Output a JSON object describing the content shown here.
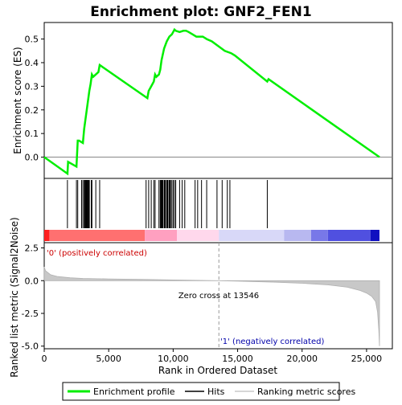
{
  "chart_data": {
    "type": "line",
    "title": "Enrichment plot: GNF2_FEN1",
    "xlabel": "Rank in Ordered Dataset",
    "xlim": [
      0,
      27000
    ],
    "x_ticks": [
      0,
      5000,
      10000,
      15000,
      20000,
      25000
    ],
    "x_tick_labels": [
      "0",
      "5,000",
      "10,000",
      "15,000",
      "20,000",
      "25,000"
    ],
    "panels": {
      "es": {
        "ylabel": "Enrichment score (ES)",
        "ylim": [
          -0.09,
          0.57
        ],
        "y_ticks": [
          0.0,
          0.1,
          0.2,
          0.3,
          0.4,
          0.5
        ],
        "y_tick_labels": [
          "0.0",
          "0.1",
          "0.2",
          "0.3",
          "0.4",
          "0.5"
        ]
      },
      "metric": {
        "ylabel": "Ranked list metric (Signal2Noise)",
        "ylim": [
          -5.2,
          2.9
        ],
        "y_ticks": [
          2.5,
          0.0,
          -2.5,
          -5.0
        ],
        "y_tick_labels": [
          "2.5",
          "0.0",
          "-2.5",
          "-5.0"
        ]
      }
    },
    "series": [
      {
        "name": "Enrichment profile",
        "color": "#00ee00",
        "x": [
          0,
          1800,
          1850,
          2500,
          2600,
          2700,
          3000,
          3100,
          3200,
          3300,
          3400,
          3500,
          3600,
          3700,
          3800,
          4000,
          4200,
          4300,
          8000,
          8100,
          8300,
          8500,
          8600,
          8700,
          8900,
          9000,
          9100,
          9300,
          9500,
          9700,
          9900,
          10000,
          10100,
          10200,
          10500,
          10800,
          11000,
          11200,
          11500,
          11800,
          12000,
          12300,
          12600,
          13000,
          13500,
          14000,
          14500,
          14800,
          17300,
          17400,
          26000
        ],
        "y": [
          0.0,
          -0.07,
          -0.02,
          -0.04,
          0.07,
          0.07,
          0.06,
          0.12,
          0.16,
          0.2,
          0.24,
          0.28,
          0.31,
          0.35,
          0.34,
          0.35,
          0.36,
          0.39,
          0.25,
          0.28,
          0.3,
          0.32,
          0.35,
          0.34,
          0.35,
          0.37,
          0.41,
          0.46,
          0.49,
          0.51,
          0.52,
          0.53,
          0.54,
          0.535,
          0.53,
          0.535,
          0.535,
          0.53,
          0.52,
          0.51,
          0.51,
          0.51,
          0.5,
          0.49,
          0.47,
          0.45,
          0.44,
          0.43,
          0.32,
          0.33,
          0.0
        ]
      },
      {
        "name": "Hits",
        "color": "#000000",
        "x": [
          1800,
          2500,
          2600,
          2900,
          3000,
          3100,
          3150,
          3200,
          3250,
          3300,
          3350,
          3400,
          3450,
          3500,
          3650,
          3700,
          4000,
          4300,
          7900,
          8100,
          8300,
          8500,
          8600,
          8900,
          9000,
          9050,
          9100,
          9150,
          9200,
          9300,
          9350,
          9400,
          9500,
          9550,
          9600,
          9700,
          9750,
          9800,
          9900,
          10000,
          10100,
          10200,
          10500,
          10700,
          10900,
          11700,
          11900,
          12200,
          12600,
          13400,
          13800,
          14200,
          14400,
          17300
        ]
      },
      {
        "name": "Ranking metric scores",
        "color": "#c8c8c8",
        "x": [
          0,
          100,
          500,
          1000,
          2000,
          3000,
          5000,
          8000,
          10000,
          12000,
          13546,
          15000,
          18000,
          20000,
          22000,
          23500,
          24500,
          25000,
          25400,
          25700,
          25850,
          25950,
          26000
        ],
        "y": [
          1.05,
          0.75,
          0.45,
          0.32,
          0.22,
          0.17,
          0.13,
          0.09,
          0.05,
          0.02,
          0.0,
          -0.04,
          -0.12,
          -0.2,
          -0.32,
          -0.5,
          -0.75,
          -0.95,
          -1.2,
          -1.6,
          -2.4,
          -3.8,
          -5.0
        ]
      }
    ],
    "annotations": {
      "positive_label": "'0' (positively correlated)",
      "negative_label": "'1' (negatively correlated)",
      "zero_cross_label": "Zero cross at 13546",
      "zero_cross": 13546
    },
    "color_bar": {
      "segments": [
        {
          "x0": 0,
          "x1": 400,
          "color": "#ff2020"
        },
        {
          "x0": 400,
          "x1": 7800,
          "color": "#ff7070"
        },
        {
          "x0": 7800,
          "x1": 10300,
          "color": "#ffa0c0"
        },
        {
          "x0": 10300,
          "x1": 13546,
          "color": "#ffd8ec"
        },
        {
          "x0": 13546,
          "x1": 18600,
          "color": "#d8d8f8"
        },
        {
          "x0": 18600,
          "x1": 20700,
          "color": "#b8b8f0"
        },
        {
          "x0": 20700,
          "x1": 22000,
          "color": "#7878e8"
        },
        {
          "x0": 22000,
          "x1": 25300,
          "color": "#5050e0"
        },
        {
          "x0": 25300,
          "x1": 26000,
          "color": "#1010c0"
        }
      ]
    },
    "legend": {
      "placement": "bottom",
      "entries": [
        "Enrichment profile",
        "Hits",
        "Ranking metric scores"
      ]
    },
    "grid": false
  }
}
